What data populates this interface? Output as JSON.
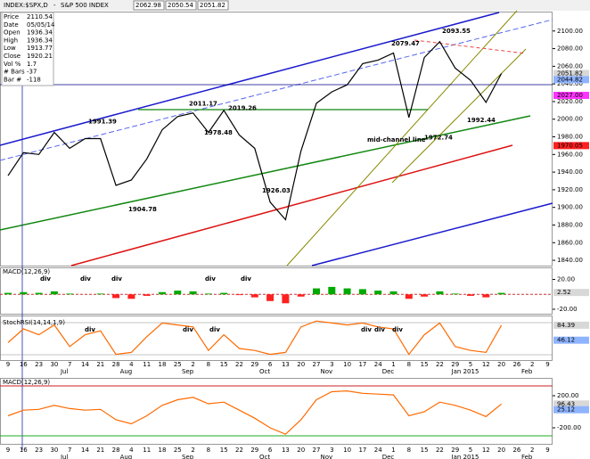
{
  "header": {
    "symbol": "INDEX:$SPX,D",
    "separator": "-",
    "name": "S&P 500 INDEX",
    "quotes": [
      "2062.98",
      "2050.54",
      "2051.82"
    ]
  },
  "info": [
    [
      "Price",
      "2110.54"
    ],
    [
      "Date",
      "05/05/14"
    ],
    [
      "Open",
      "1936.34"
    ],
    [
      "High",
      "1936.34"
    ],
    [
      "Low",
      "1913.77"
    ],
    [
      "Close",
      "1920.21"
    ],
    [
      "Vol %",
      "1.7"
    ],
    [
      "# Bars",
      "-37"
    ],
    [
      "Bar #",
      "-118"
    ]
  ],
  "chart_data": [
    {
      "type": "line",
      "color": "#000000",
      "ylim": [
        1834,
        2121
      ],
      "yticks": [
        {
          "value": 1840,
          "label": "1840.00"
        },
        {
          "value": 1860,
          "label": "1860.00"
        },
        {
          "value": 1880,
          "label": "1880.00"
        },
        {
          "value": 1900,
          "label": "1900.00"
        },
        {
          "value": 1920,
          "label": "1920.00"
        },
        {
          "value": 1940,
          "label": "1940.00"
        },
        {
          "value": 1960,
          "label": "1960.00"
        },
        {
          "value": 1980,
          "label": "1980.00"
        },
        {
          "value": 2000,
          "label": "2000.00"
        },
        {
          "value": 2020,
          "label": "2020.00"
        },
        {
          "value": 2040,
          "label": "2040.00"
        },
        {
          "value": 2060,
          "label": "2060.00"
        },
        {
          "value": 2080,
          "label": "2080.00"
        },
        {
          "value": 2100,
          "label": "2100.00"
        }
      ],
      "values": [
        1936,
        1962,
        1960,
        1985,
        1967,
        1978,
        1978,
        1925,
        1931,
        1955,
        1988,
        2003,
        2007,
        1985,
        2010,
        1982,
        1967,
        1906,
        1886,
        1964,
        2018,
        2031,
        2039,
        2063,
        2067,
        2075,
        2002,
        2070,
        2088,
        2058,
        2044,
        2019,
        2051.82,
        null,
        null,
        null
      ],
      "flags": [
        {
          "value": 2051.82,
          "label": "2051.82",
          "color": "#d8d8d8"
        },
        {
          "value": 2044.82,
          "label": "2044.82",
          "color": "#8fb4ff"
        },
        {
          "value": 2027.0,
          "label": "2027.00",
          "color": "#ff33ff"
        },
        {
          "value": 1970.05,
          "label": "1970.05",
          "color": "#ff2020"
        }
      ],
      "annotations": [
        {
          "value": 1991.39,
          "label": "1991.39"
        },
        {
          "value": 1904.78,
          "label": "1904.78"
        },
        {
          "value": 2011.17,
          "label": "2011.17"
        },
        {
          "value": 1978.48,
          "label": "1978.48"
        },
        {
          "value": 2019.26,
          "label": "2019.26"
        },
        {
          "value": 1926.03,
          "label": "1926.03"
        },
        {
          "value": 2079.47,
          "label": "2079.47"
        },
        {
          "value": 2093.55,
          "label": "2093.55"
        },
        {
          "value": 1972.74,
          "label": "1972.74"
        },
        {
          "value": 1992.44,
          "label": "1992.44"
        }
      ],
      "note": "mid-channel line"
    },
    {
      "type": "bar",
      "title": "MACD(12,26,9)",
      "color": "#00aa00",
      "negative_color": "#ff2020",
      "ylim": [
        -26,
        35
      ],
      "yticks": [
        {
          "value": 20,
          "label": "20.00"
        },
        {
          "value": -20,
          "label": "-20.00"
        }
      ],
      "values": [
        2,
        3,
        2,
        4,
        1,
        0,
        1,
        -5,
        -6,
        -2,
        3,
        5,
        4,
        1,
        2,
        -1,
        -4,
        -9,
        -12,
        -3,
        8,
        10,
        8,
        7,
        5,
        4,
        -6,
        -3,
        4,
        1,
        -2,
        -4,
        2,
        null,
        null,
        null
      ],
      "flags": [
        {
          "value": 2.52,
          "label": "2.52",
          "color": "#d8d8d8"
        }
      ],
      "notes": [
        "div",
        "div",
        "div",
        "div",
        "div"
      ]
    },
    {
      "type": "line",
      "title": "StochRSI(14,14,1,9)",
      "color": "#ff6a00",
      "ylim": [
        0,
        100
      ],
      "values": [
        40,
        75,
        60,
        85,
        30,
        60,
        70,
        10,
        15,
        55,
        90,
        85,
        80,
        20,
        60,
        25,
        20,
        10,
        15,
        80,
        95,
        90,
        85,
        90,
        80,
        75,
        10,
        60,
        90,
        30,
        20,
        15,
        84.39,
        null,
        null,
        null
      ],
      "flags": [
        {
          "value": 84.39,
          "label": "84.39",
          "color": "#d8d8d8"
        },
        {
          "value": 46.12,
          "label": "46.12",
          "color": "#8fb4ff"
        }
      ],
      "notes": [
        "div",
        "div",
        "div",
        "div",
        "div",
        "div"
      ],
      "categories": [
        "9",
        "16",
        "23",
        "30",
        "7",
        "14",
        "21",
        "28",
        "4",
        "11",
        "18",
        "25",
        "2",
        "8",
        "15",
        "22",
        "29",
        "6",
        "13",
        "20",
        "27",
        "3",
        "10",
        "17",
        "24",
        "1",
        "8",
        "15",
        "22",
        "29",
        "5",
        "12",
        "20",
        "26",
        "2",
        "9"
      ],
      "months": [
        null,
        null,
        null,
        null,
        "Jul",
        null,
        null,
        null,
        "Aug",
        null,
        null,
        null,
        "Sep",
        null,
        null,
        null,
        null,
        "Oct",
        null,
        null,
        null,
        "Nov",
        null,
        null,
        null,
        "Dec",
        null,
        null,
        null,
        null,
        "Jan 2015",
        null,
        null,
        null,
        "Feb",
        null
      ]
    },
    {
      "type": "line",
      "title": "MACD(12,26,9)",
      "color": "#ff6a00",
      "ylim": [
        -400,
        411
      ],
      "yticks": [
        {
          "value": 200,
          "label": "200.00"
        },
        {
          "value": -200,
          "label": "-200.00"
        }
      ],
      "values": [
        -50,
        20,
        30,
        80,
        40,
        20,
        30,
        -100,
        -150,
        -50,
        80,
        150,
        180,
        100,
        120,
        20,
        -80,
        -200,
        -280,
        -100,
        150,
        250,
        260,
        230,
        220,
        210,
        -50,
        0,
        120,
        80,
        20,
        -60,
        96.43,
        null,
        null,
        null
      ],
      "flags": [
        {
          "value": 96.43,
          "label": "96.43",
          "color": "#d8d8d8"
        },
        {
          "value": 25.12,
          "label": "25.12",
          "color": "#8fb4ff"
        }
      ],
      "categories": [
        "9",
        "16",
        "23",
        "30",
        "7",
        "14",
        "21",
        "28",
        "4",
        "11",
        "18",
        "25",
        "2",
        "8",
        "15",
        "22",
        "29",
        "6",
        "13",
        "20",
        "27",
        "3",
        "10",
        "17",
        "24",
        "1",
        "8",
        "15",
        "22",
        "29",
        "5",
        "12",
        "20",
        "26",
        "2",
        "9"
      ],
      "months": [
        null,
        null,
        null,
        null,
        "Jul",
        null,
        null,
        null,
        "Aug",
        null,
        null,
        null,
        "Sep",
        null,
        null,
        null,
        null,
        "Oct",
        null,
        null,
        null,
        "Nov",
        null,
        null,
        null,
        "Dec",
        null,
        null,
        null,
        null,
        "Jan 2015",
        null,
        null,
        null,
        "Feb",
        null
      ]
    }
  ]
}
